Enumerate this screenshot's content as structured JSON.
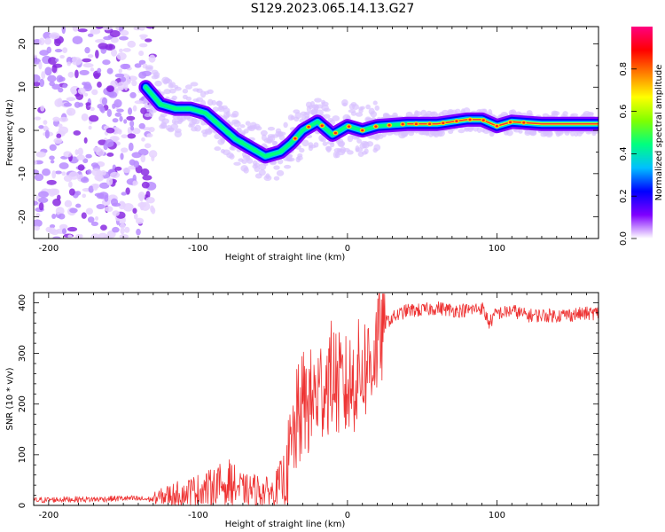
{
  "title": "S129.2023.065.14.13.G27",
  "chart_data": [
    {
      "type": "heatmap",
      "name": "spectrogram",
      "xlabel": "Height of straight line (km)",
      "ylabel": "Frequency (Hz)",
      "xlim": [
        -210,
        168
      ],
      "ylim": [
        -25,
        24
      ],
      "xticks": [
        -200,
        -100,
        0,
        100
      ],
      "yticks": [
        -20,
        -10,
        0,
        10,
        20
      ],
      "colorbar": {
        "label": "Normalized spectral amplitude",
        "range": [
          0,
          1
        ],
        "ticks": [
          0.0,
          0.2,
          0.4,
          0.6,
          0.8
        ],
        "tick_labels": [
          "0.0",
          "0.2",
          "0.4",
          "0.6",
          "0.8"
        ],
        "colormap": [
          "#ffffff",
          "#7f00ff",
          "#0000ff",
          "#00bfff",
          "#00ff80",
          "#80ff00",
          "#ffff00",
          "#ff8000",
          "#ff0000",
          "#ff0080"
        ]
      },
      "ridge": {
        "x": [
          -135,
          -125,
          -115,
          -105,
          -95,
          -85,
          -75,
          -65,
          -55,
          -45,
          -38,
          -30,
          -20,
          -10,
          0,
          10,
          20,
          40,
          60,
          80,
          90,
          100,
          110,
          130,
          168
        ],
        "y": [
          10,
          6,
          5,
          5,
          4,
          1,
          -2,
          -4,
          -6,
          -5,
          -3,
          0,
          2,
          -1,
          1,
          0,
          1,
          1.5,
          1.5,
          2.5,
          2.5,
          1,
          2,
          1.5,
          1.5
        ]
      },
      "noise_region_x": [
        -210,
        -130
      ]
    },
    {
      "type": "line",
      "name": "snr",
      "xlabel": "Height of straight line (km)",
      "ylabel": "SNR (10 * v/v)",
      "xlim": [
        -210,
        168
      ],
      "ylim": [
        0,
        420
      ],
      "xticks": [
        -200,
        -100,
        0,
        100
      ],
      "yticks": [
        0,
        100,
        200,
        300,
        400
      ],
      "color": "#ee3333",
      "x": [
        -210,
        -190,
        -170,
        -150,
        -130,
        -120,
        -110,
        -100,
        -90,
        -80,
        -70,
        -60,
        -50,
        -40,
        -35,
        -30,
        -25,
        -20,
        -15,
        -10,
        -5,
        0,
        5,
        10,
        15,
        20,
        25,
        30,
        40,
        50,
        60,
        70,
        80,
        90,
        95,
        100,
        105,
        110,
        120,
        140,
        168
      ],
      "y": [
        10,
        12,
        12,
        14,
        12,
        20,
        25,
        30,
        35,
        45,
        30,
        30,
        25,
        60,
        150,
        200,
        200,
        220,
        240,
        260,
        230,
        230,
        250,
        270,
        280,
        320,
        360,
        370,
        385,
        385,
        390,
        385,
        385,
        390,
        360,
        380,
        380,
        385,
        375,
        375,
        380
      ]
    }
  ]
}
